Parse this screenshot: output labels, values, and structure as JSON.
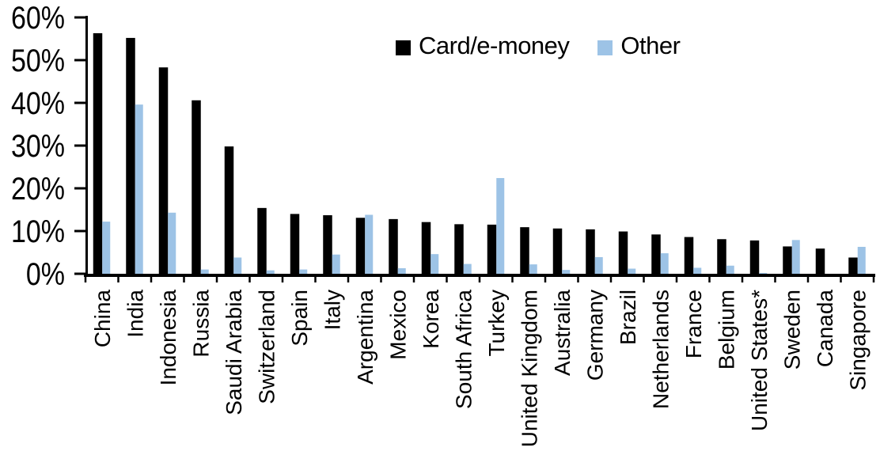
{
  "chart_data": {
    "type": "bar",
    "title": "",
    "categories": [
      "China",
      "India",
      "Indonesia",
      "Russia",
      "Saudi Arabia",
      "Switzerland",
      "Spain",
      "Italy",
      "Argentina",
      "Mexico",
      "Korea",
      "South Africa",
      "Turkey",
      "United Kingdom",
      "Australia",
      "Germany",
      "Brazil",
      "Netherlands",
      "France",
      "Belgium",
      "United States*",
      "Sweden",
      "Canada",
      "Singapore"
    ],
    "series": [
      {
        "name": "Card/e-money",
        "color": "#000000",
        "values": [
          56.3,
          55.2,
          48.3,
          40.6,
          29.8,
          15.4,
          14.0,
          13.7,
          13.1,
          12.8,
          12.1,
          11.6,
          11.5,
          10.9,
          10.6,
          10.4,
          9.9,
          9.2,
          8.6,
          8.1,
          7.8,
          6.4,
          5.9,
          3.8
        ]
      },
      {
        "name": "Other",
        "color": "#9DC3E6",
        "values": [
          12.2,
          39.6,
          14.3,
          1.0,
          3.8,
          0.8,
          1.0,
          4.5,
          13.8,
          1.3,
          4.6,
          2.3,
          22.4,
          2.2,
          0.9,
          3.9,
          1.2,
          4.8,
          1.4,
          1.9,
          0.2,
          7.9,
          0.0,
          6.3
        ]
      }
    ],
    "xlabel": "",
    "ylabel": "",
    "y_axis": {
      "min": 0,
      "max": 60,
      "step": 10,
      "tick_labels": [
        "0%",
        "10%",
        "20%",
        "30%",
        "40%",
        "50%",
        "60%"
      ],
      "unit": "percent"
    },
    "grid": false,
    "legend_position": "top-center",
    "category_label_rotation": -90
  }
}
